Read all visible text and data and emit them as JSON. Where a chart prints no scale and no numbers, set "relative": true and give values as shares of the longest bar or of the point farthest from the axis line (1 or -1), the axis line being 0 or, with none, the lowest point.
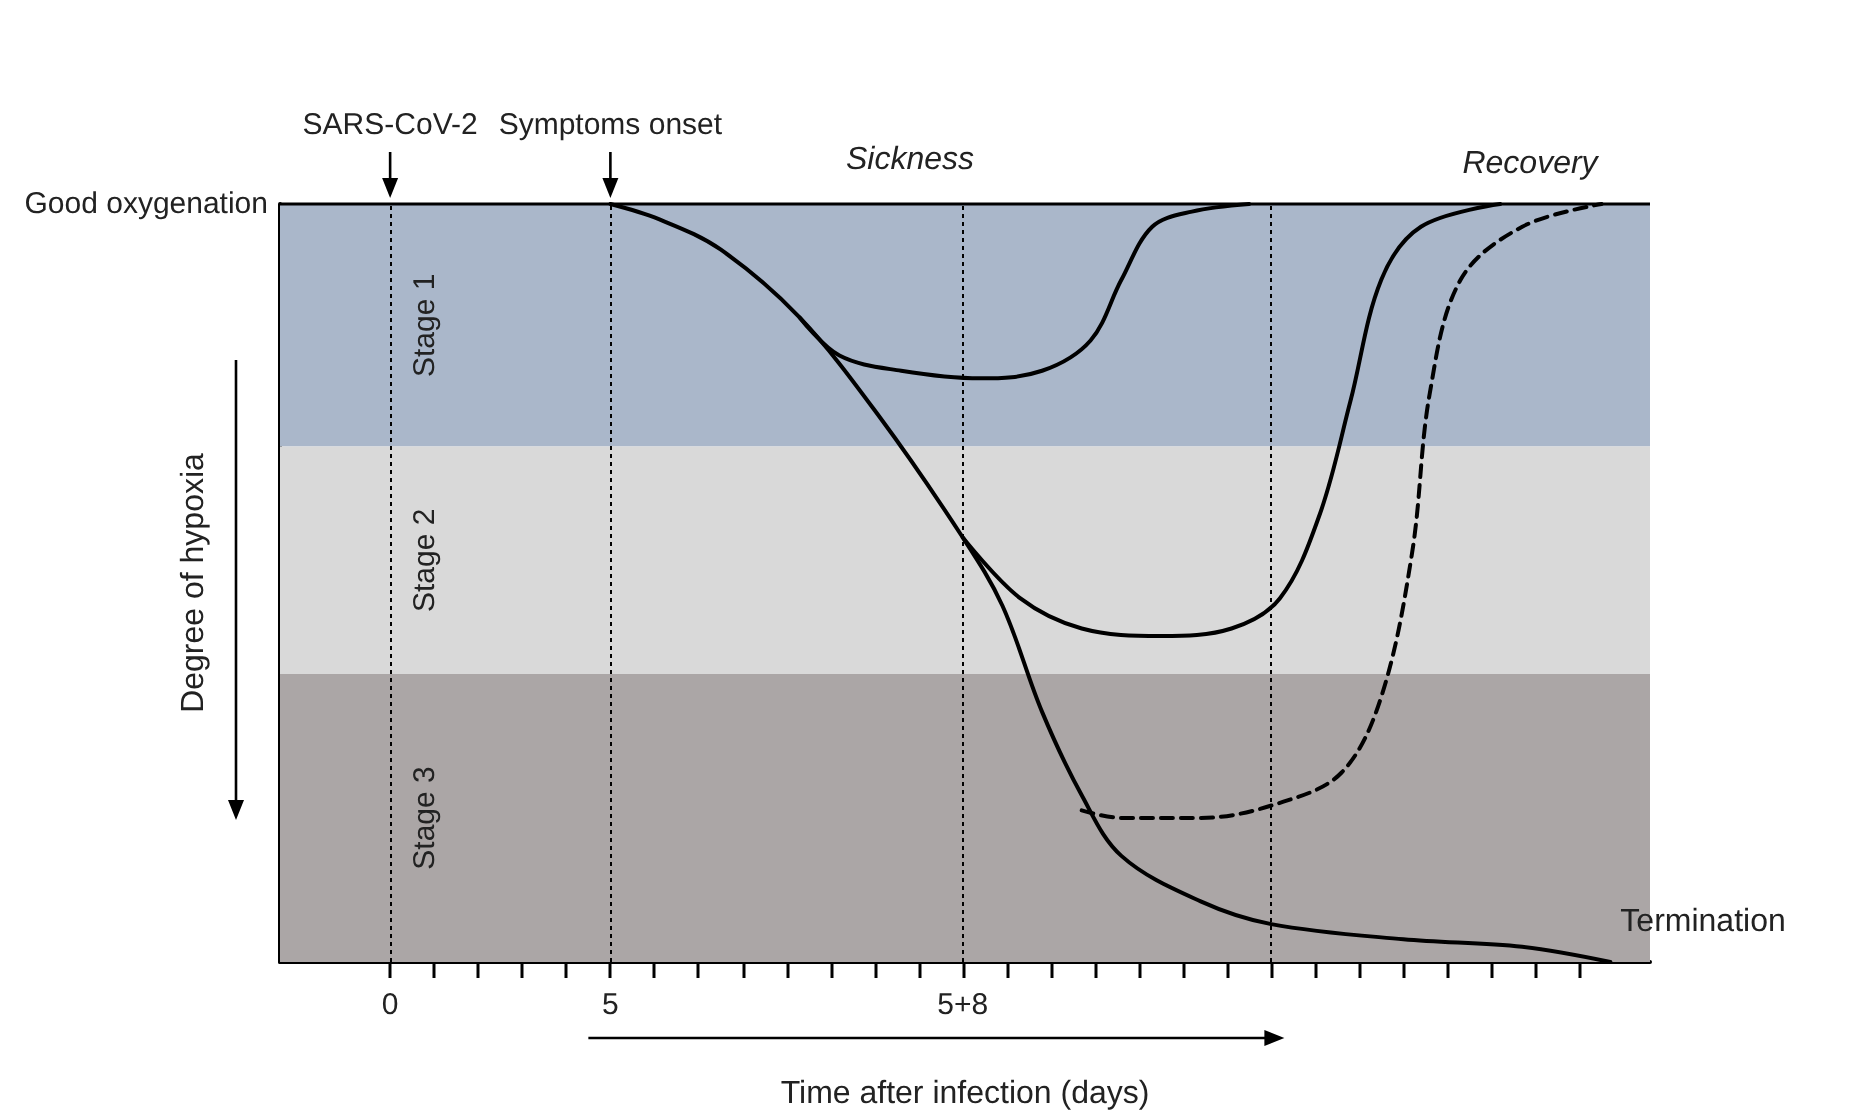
{
  "chart_data": {
    "type": "line",
    "relative": true,
    "xlabel": "Time after infection (days)",
    "ylabel": "Degree of hypoxia",
    "xlim": [
      -2.5,
      28.6
    ],
    "ylim": [
      0,
      1
    ],
    "tick_labels": "x",
    "marker": "none",
    "xticks": [
      0,
      {
        "value": 1,
        "label": null
      },
      {
        "value": 2,
        "label": null
      },
      {
        "value": 3,
        "label": null
      },
      {
        "value": 4,
        "label": null
      },
      5,
      {
        "value": 6,
        "label": null
      },
      {
        "value": 7,
        "label": null
      },
      {
        "value": 8,
        "label": null
      },
      {
        "value": 9,
        "label": null
      },
      {
        "value": 10,
        "label": null
      },
      {
        "value": 11,
        "label": null
      },
      {
        "value": 12,
        "label": null
      },
      {
        "value": 13,
        "label": "5+8"
      },
      {
        "value": 14,
        "label": null
      },
      {
        "value": 15,
        "label": null
      },
      {
        "value": 16,
        "label": null
      },
      {
        "value": 17,
        "label": null
      },
      {
        "value": 18,
        "label": null
      },
      {
        "value": 19,
        "label": null
      },
      {
        "value": 20,
        "label": null
      },
      {
        "value": 21,
        "label": null
      },
      {
        "value": 22,
        "label": null
      },
      {
        "value": 23,
        "label": null
      },
      {
        "value": 24,
        "label": null
      },
      {
        "value": 25,
        "label": null
      },
      {
        "value": 26,
        "label": null
      },
      {
        "value": 27,
        "label": null
      }
    ],
    "series": [
      {
        "color": "#000000",
        "line_style": "solid",
        "x": [
          5,
          6.1,
          7.5,
          9.3,
          11.1,
          13,
          13.9,
          14.8,
          15.7,
          16.6,
          18.4,
          20,
          23,
          25.7,
          27.7
        ],
        "values": [
          1,
          0.98,
          0.94,
          0.85,
          0.72,
          0.56,
          0.47,
          0.33,
          0.22,
          0.14,
          0.08,
          0.05,
          0.03,
          0.02,
          0
        ]
      },
      {
        "color": "#000000",
        "line_style": "solid",
        "x": [
          9.3,
          10.2,
          11.6,
          13.4,
          14.8,
          15.9,
          16.6,
          17.3,
          18.2,
          19.5
        ],
        "values": [
          0.85,
          0.8,
          0.78,
          0.77,
          0.78,
          0.82,
          0.9,
          0.97,
          0.99,
          1
        ]
      },
      {
        "color": "#000000",
        "line_style": "solid",
        "x": [
          13,
          14.3,
          15.7,
          17.5,
          19.1,
          20.2,
          21.1,
          21.8,
          22.5,
          23.4,
          25.2
        ],
        "values": [
          0.56,
          0.48,
          0.44,
          0.43,
          0.44,
          0.48,
          0.59,
          0.74,
          0.9,
          0.97,
          1
        ]
      },
      {
        "color": "#000000",
        "line_style": "dashed",
        "x": [
          15.7,
          16.6,
          18.4,
          20.2,
          21.6,
          22.5,
          23.2,
          23.6,
          24.3,
          25.7,
          27.5
        ],
        "values": [
          0.2,
          0.19,
          0.19,
          0.21,
          0.25,
          0.35,
          0.54,
          0.75,
          0.9,
          0.97,
          1
        ]
      }
    ],
    "bands": [
      {
        "axis": "y",
        "from": 0.68,
        "to": 1,
        "label": "Stage 1",
        "color": "#aab7ca"
      },
      {
        "axis": "y",
        "from": 0.38,
        "to": 0.68,
        "label": "Stage 2",
        "color": "#d9d9d9"
      },
      {
        "axis": "y",
        "from": 0,
        "to": 0.38,
        "label": "Stage 3",
        "color": "#aba6a6"
      }
    ],
    "ref_lines": [
      {
        "axis": "y",
        "value": 1,
        "label": "Good oxygenation",
        "color": "#000000",
        "line_style": "solid"
      },
      {
        "axis": "x",
        "value": 0,
        "label": "SARS-CoV-2",
        "color": "#000000",
        "line_style": "dotted"
      },
      {
        "axis": "x",
        "value": 5,
        "label": "Symptoms onset",
        "color": "#000000",
        "line_style": "dotted"
      },
      {
        "axis": "x",
        "value": 13,
        "color": "#000000",
        "line_style": "dotted"
      },
      {
        "axis": "x",
        "value": 20,
        "color": "#000000",
        "line_style": "dotted"
      }
    ],
    "annotations": [
      "Sickness",
      "Recovery",
      {
        "text": "Termination",
        "x": 27.7,
        "y": 0
      }
    ]
  }
}
